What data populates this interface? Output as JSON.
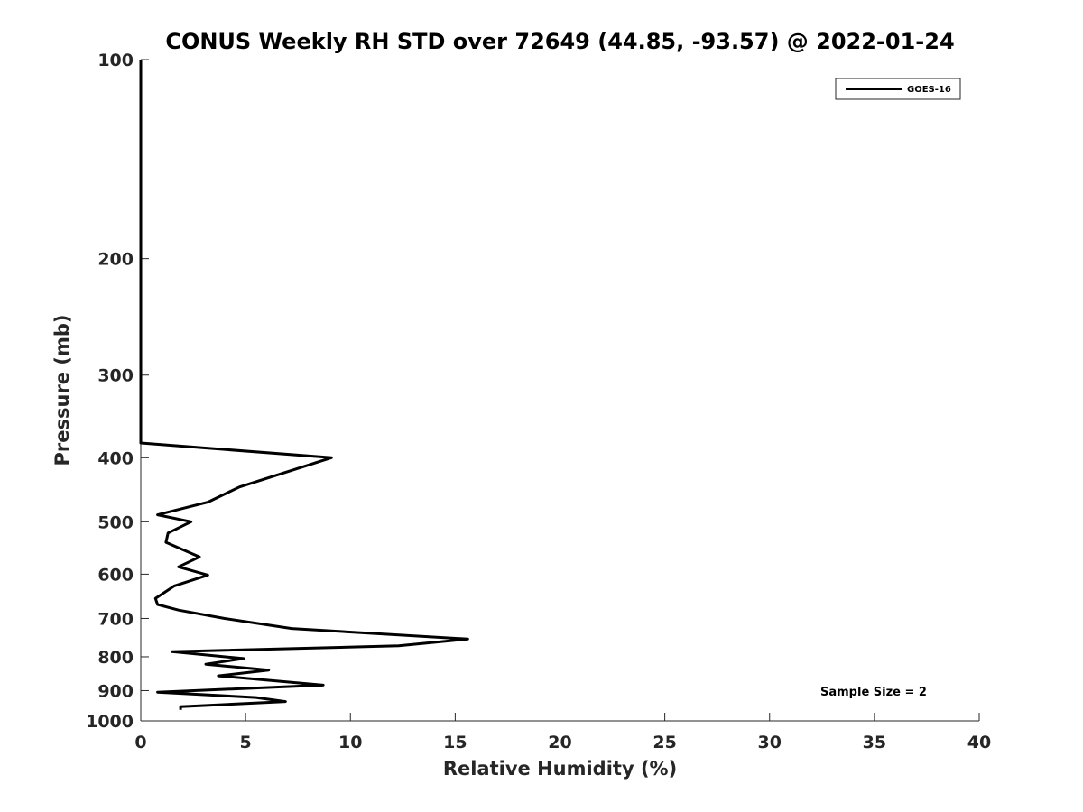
{
  "chart_data": {
    "type": "line",
    "title": "CONUS Weekly RH STD over 72649 (44.85, -93.57) @ 2022-01-24",
    "xlabel": "Relative Humidity (%)",
    "ylabel": "Pressure (mb)",
    "xlim": [
      0,
      40
    ],
    "ylim": [
      100,
      1000
    ],
    "yscale": "log",
    "reverse_y": true,
    "x_ticks": [
      0,
      5,
      10,
      15,
      20,
      25,
      30,
      35,
      40
    ],
    "y_ticks": [
      100,
      200,
      300,
      400,
      500,
      600,
      700,
      800,
      900,
      1000
    ],
    "grid": false,
    "legend": {
      "position": "top-right",
      "entries": [
        "GOES-16"
      ]
    },
    "annotation": "Sample Size = 2",
    "series": [
      {
        "name": "GOES-16",
        "color": "#000000",
        "points": [
          {
            "x": 0.0,
            "p": 100
          },
          {
            "x": 0.0,
            "p": 380
          },
          {
            "x": 9.1,
            "p": 400
          },
          {
            "x": 4.7,
            "p": 443
          },
          {
            "x": 3.2,
            "p": 467
          },
          {
            "x": 0.8,
            "p": 488
          },
          {
            "x": 2.4,
            "p": 500
          },
          {
            "x": 1.3,
            "p": 520
          },
          {
            "x": 1.2,
            "p": 537
          },
          {
            "x": 2.8,
            "p": 565
          },
          {
            "x": 1.8,
            "p": 585
          },
          {
            "x": 3.2,
            "p": 602
          },
          {
            "x": 1.6,
            "p": 625
          },
          {
            "x": 0.7,
            "p": 653
          },
          {
            "x": 0.8,
            "p": 667
          },
          {
            "x": 1.8,
            "p": 680
          },
          {
            "x": 4.0,
            "p": 700
          },
          {
            "x": 7.2,
            "p": 725
          },
          {
            "x": 15.6,
            "p": 752
          },
          {
            "x": 12.3,
            "p": 770
          },
          {
            "x": 1.5,
            "p": 786
          },
          {
            "x": 4.9,
            "p": 805
          },
          {
            "x": 3.1,
            "p": 821
          },
          {
            "x": 6.1,
            "p": 838
          },
          {
            "x": 3.7,
            "p": 855
          },
          {
            "x": 8.7,
            "p": 883
          },
          {
            "x": 0.8,
            "p": 905
          },
          {
            "x": 5.5,
            "p": 922
          },
          {
            "x": 6.9,
            "p": 935
          },
          {
            "x": 1.9,
            "p": 952
          },
          {
            "x": 1.9,
            "p": 962
          }
        ]
      }
    ]
  }
}
